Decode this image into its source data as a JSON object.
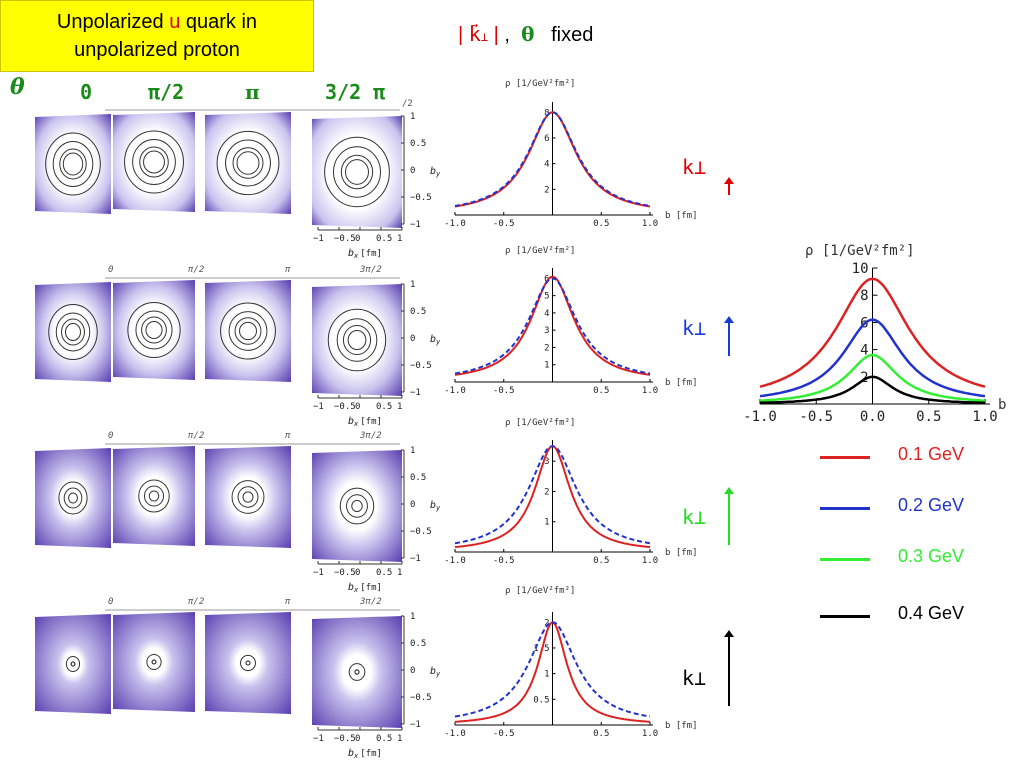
{
  "title": {
    "part1": "Unpolarized ",
    "quark": "u",
    "part2": " quark in",
    "line2": "unpolarized proton"
  },
  "fixed_label": {
    "k": "k",
    "comma": " ,",
    "theta": "θ",
    "fixed": "fixed"
  },
  "theta_header": {
    "symbol": "θ",
    "angles": [
      "0",
      "π/2",
      "π",
      "3/2 π"
    ]
  },
  "small_angles": [
    "0",
    "π/2",
    "π",
    "3π/2"
  ],
  "density_axis": {
    "bx_label": "b",
    "bx_sub": "x",
    "bx_unit": "[fm]",
    "by_label": "b",
    "by_sub": "y",
    "x_ticks": [
      "−1",
      "−0.5",
      "0",
      "0.5",
      "1"
    ],
    "y_ticks": [
      "1",
      "0.5",
      "0",
      "−0.5",
      "−1"
    ],
    "corner_label": "/2"
  },
  "kperp_labels": [
    {
      "text": "k⊥",
      "color": "#e00000",
      "arrow_len": 12
    },
    {
      "text": "k⊥",
      "color": "#1a3adb",
      "arrow_len": 34
    },
    {
      "text": "k⊥",
      "color": "#22dd22",
      "arrow_len": 52
    },
    {
      "text": "k⊥",
      "color": "#000000",
      "arrow_len": 70
    }
  ],
  "colors": {
    "red": "#dd2222",
    "blue": "#2233cc",
    "green": "#33ee33",
    "black": "#000000",
    "contour": "#333333",
    "purple": "#5a3fb0"
  },
  "chart_data": [
    {
      "type": "line",
      "ylabel": "ρ [1/GeV²fm²]",
      "xlabel": "b [fm]",
      "xlim": [
        -1.0,
        1.0
      ],
      "ylim": [
        0,
        8.8
      ],
      "x_ticks": [
        "-1.0",
        "-0.5",
        "0.5",
        "1.0"
      ],
      "y_ticks": [
        2,
        4,
        6,
        8
      ],
      "series": [
        {
          "style": "solid",
          "color": "#dd2222",
          "peak": 8.0,
          "width": 0.3
        },
        {
          "style": "dashed",
          "color": "#2233cc",
          "peak": 8.0,
          "width": 0.31
        }
      ]
    },
    {
      "type": "line",
      "ylabel": "ρ [1/GeV²fm²]",
      "xlabel": "b [fm]",
      "xlim": [
        -1.0,
        1.0
      ],
      "ylim": [
        0,
        6.6
      ],
      "x_ticks": [
        "-1.0",
        "-0.5",
        "0.5",
        "1.0"
      ],
      "y_ticks": [
        1,
        2,
        3,
        4,
        5,
        6
      ],
      "series": [
        {
          "style": "solid",
          "color": "#dd2222",
          "peak": 6.1,
          "width": 0.27
        },
        {
          "style": "dashed",
          "color": "#2233cc",
          "peak": 6.0,
          "width": 0.3
        }
      ]
    },
    {
      "type": "line",
      "ylabel": "ρ [1/GeV²fm²]",
      "xlabel": "b [fm]",
      "xlim": [
        -1.0,
        1.0
      ],
      "ylim": [
        0,
        3.7
      ],
      "x_ticks": [
        "-1.0",
        "-0.5",
        "0.5",
        "1.0"
      ],
      "y_ticks": [
        1,
        2,
        3
      ],
      "series": [
        {
          "style": "solid",
          "color": "#dd2222",
          "peak": 3.5,
          "width": 0.22
        },
        {
          "style": "dashed",
          "color": "#2233cc",
          "peak": 3.5,
          "width": 0.3
        }
      ]
    },
    {
      "type": "line",
      "ylabel": "ρ [1/GeV²fm²]",
      "xlabel": "b [fm]",
      "xlim": [
        -1.0,
        1.0
      ],
      "ylim": [
        0,
        2.2
      ],
      "x_ticks": [
        "-1.0",
        "-0.5",
        "0.5",
        "1.0"
      ],
      "y_ticks": [
        0.5,
        1.0,
        1.5,
        2.0
      ],
      "series": [
        {
          "style": "solid",
          "color": "#dd2222",
          "peak": 2.0,
          "width": 0.18
        },
        {
          "style": "dashed",
          "color": "#2233cc",
          "peak": 2.0,
          "width": 0.3
        }
      ]
    },
    {
      "type": "line",
      "ylabel": "ρ [1/GeV²fm²]",
      "xlabel": "b",
      "xlim": [
        -1.0,
        1.0
      ],
      "ylim": [
        0,
        10
      ],
      "x_ticks": [
        "-1.0",
        "-0.5",
        "0.0",
        "0.5",
        "1.0"
      ],
      "y_ticks": [
        2,
        4,
        6,
        8,
        10
      ],
      "series": [
        {
          "name": "0.1 GeV",
          "color": "#dd2222",
          "peak": 9.2,
          "width": 0.4
        },
        {
          "name": "0.2 GeV",
          "color": "#2233cc",
          "peak": 6.2,
          "width": 0.32
        },
        {
          "name": "0.3 GeV",
          "color": "#33ee33",
          "peak": 3.6,
          "width": 0.27
        },
        {
          "name": "0.4 GeV",
          "color": "#000000",
          "peak": 2.0,
          "width": 0.22
        }
      ]
    }
  ],
  "density_rows": [
    {
      "sigmas": [
        0.75,
        0.8,
        0.8,
        0.85
      ],
      "contours": [
        [
          0.62,
          0.45,
          0.3,
          0.22
        ],
        [
          0.62,
          0.45,
          0.3,
          0.22
        ],
        [
          0.62,
          0.45,
          0.3,
          0.22
        ],
        [
          0.62,
          0.45,
          0.3,
          0.22
        ]
      ]
    },
    {
      "sigmas": [
        0.62,
        0.66,
        0.66,
        0.7
      ],
      "contours": [
        [
          0.55,
          0.38,
          0.26,
          0.17
        ],
        [
          0.55,
          0.38,
          0.26,
          0.17
        ],
        [
          0.55,
          0.38,
          0.26,
          0.17
        ],
        [
          0.55,
          0.38,
          0.26,
          0.17
        ]
      ]
    },
    {
      "sigmas": [
        0.45,
        0.5,
        0.5,
        0.55
      ],
      "contours": [
        [
          0.32,
          0.2,
          0.1
        ],
        [
          0.32,
          0.2,
          0.1
        ],
        [
          0.32,
          0.2,
          0.1
        ],
        [
          0.32,
          0.2,
          0.1
        ]
      ]
    },
    {
      "sigmas": [
        0.3,
        0.35,
        0.35,
        0.4
      ],
      "contours": [
        [
          0.15,
          0.04
        ],
        [
          0.15,
          0.04
        ],
        [
          0.15,
          0.04
        ],
        [
          0.15,
          0.04
        ]
      ]
    }
  ]
}
